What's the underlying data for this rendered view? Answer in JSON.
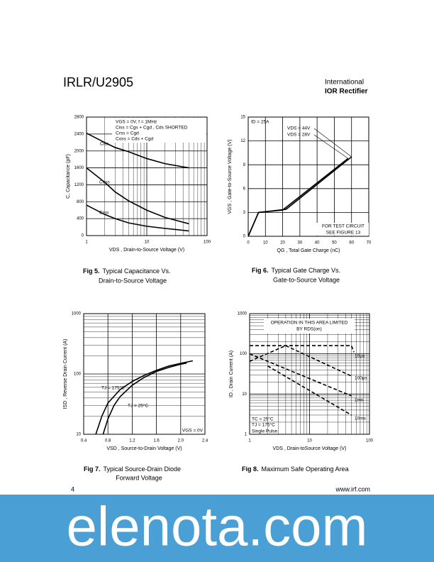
{
  "header": {
    "title": "IRLR/U2905",
    "logo_top": "International",
    "logo_bottom": "IOR Rectifier"
  },
  "chart_data": [
    {
      "type": "line",
      "xlabel": "VDS , Drain-to-Source Voltage (V)",
      "ylabel": "C, Capacitance (pF)",
      "xlog": true,
      "xlim": [
        1,
        100
      ],
      "xticks": [
        1,
        10,
        100
      ],
      "ylim": [
        0,
        2800
      ],
      "yticks": [
        0,
        400,
        800,
        1200,
        1600,
        2000,
        2400,
        2800
      ],
      "grid": true,
      "annotations": [
        "VGS = 0V,      f = 1MHz",
        "Ciss = Cgs + Cgd , Cds SHORTED",
        "Crss = Cgd",
        "Coss = Cds + Cgd"
      ],
      "series": [
        {
          "name": "Ciss",
          "color": "#000000",
          "x": [
            1,
            2,
            3,
            5,
            10,
            20,
            50
          ],
          "values": [
            2420,
            2200,
            2080,
            1980,
            1820,
            1700,
            1600
          ]
        },
        {
          "name": "Coss",
          "color": "#000000",
          "x": [
            1,
            2,
            3,
            5,
            10,
            20,
            50
          ],
          "values": [
            1600,
            1260,
            1030,
            820,
            600,
            430,
            280
          ]
        },
        {
          "name": "Crss",
          "color": "#000000",
          "x": [
            1,
            2,
            3,
            5,
            10,
            20,
            50
          ],
          "values": [
            720,
            500,
            400,
            300,
            220,
            170,
            110
          ]
        }
      ]
    },
    {
      "type": "line",
      "xlabel": "QG , Total Gate Charge (nC)",
      "ylabel": "VGS , Gate-to-Source Voltage (V)",
      "xlim": [
        0,
        70
      ],
      "xticks": [
        0,
        10,
        20,
        30,
        40,
        50,
        60,
        70
      ],
      "ylim": [
        0,
        15
      ],
      "yticks": [
        0,
        3,
        6,
        9,
        12,
        15
      ],
      "grid": true,
      "annotations": [
        "ID = 25A",
        "FOR TEST CIRCUIT",
        "SEE FIGURE 13"
      ],
      "series": [
        {
          "name": "VDS = 44V",
          "color": "#000000",
          "x": [
            0,
            6,
            22,
            60
          ],
          "values": [
            0,
            3,
            3.4,
            10
          ]
        },
        {
          "name": "VDS = 28V",
          "color": "#000000",
          "x": [
            0,
            6,
            20,
            58
          ],
          "values": [
            0,
            3,
            3.3,
            9.8
          ]
        }
      ]
    },
    {
      "type": "line",
      "xlabel": "VSD , Source-to-Drain Voltage (V)",
      "ylabel": "ISD , Reverse Drain Current (A)",
      "xlim": [
        0.4,
        2.4
      ],
      "xticks": [
        0.4,
        0.8,
        1.2,
        1.6,
        {
          "value": 2,
          "label": "2.0"
        },
        2.4
      ],
      "ylog": true,
      "ylim": [
        10,
        1000
      ],
      "yticks": [
        10,
        100,
        1000
      ],
      "grid": true,
      "annotations": [
        "VGS = 0V"
      ],
      "series": [
        {
          "name": "TJ = 175°C",
          "color": "#000000",
          "x": [
            0.6,
            0.7,
            0.8,
            1.0,
            1.2,
            1.4,
            1.6,
            1.8,
            2.0,
            2.2
          ],
          "values": [
            10,
            20,
            33,
            55,
            75,
            95,
            115,
            135,
            150,
            165
          ]
        },
        {
          "name": "TJ = 25°C",
          "color": "#000000",
          "x": [
            0.72,
            0.8,
            0.9,
            1.0,
            1.2,
            1.4,
            1.6,
            1.8,
            2.0,
            2.1
          ],
          "values": [
            10,
            18,
            30,
            42,
            65,
            88,
            110,
            128,
            145,
            152
          ]
        }
      ]
    },
    {
      "type": "line",
      "xlabel": "VDS , Drain-toSource Voltage (V)",
      "ylabel": "ID , Drain Current (A)",
      "xlog": true,
      "xlim": [
        1,
        100
      ],
      "xticks": [
        1,
        10,
        100
      ],
      "ylog": true,
      "ylim": [
        1,
        1000
      ],
      "yticks": [
        1,
        10,
        100,
        1000
      ],
      "grid": true,
      "dashed": true,
      "annotations": [
        "OPERATION IN THIS AREA LIMITED",
        "BY RDS(on)",
        "TC = 25°C",
        "TJ = 175°C",
        "Single Pulse"
      ],
      "series": [
        {
          "color": "#000000",
          "x": [
            1,
            4
          ],
          "values": [
            65,
            160
          ]
        },
        {
          "name": "10µs",
          "color": "#000000",
          "x": [
            1,
            50,
            55
          ],
          "values": [
            160,
            160,
            110
          ]
        },
        {
          "name": "100µs",
          "color": "#000000",
          "x": [
            4,
            50
          ],
          "values": [
            160,
            28
          ]
        },
        {
          "name": "1ms",
          "color": "#000000",
          "x": [
            1,
            50
          ],
          "values": [
            100,
            9
          ]
        },
        {
          "name": "10ms",
          "color": "#000000",
          "x": [
            2,
            50
          ],
          "values": [
            50,
            3
          ]
        }
      ]
    }
  ],
  "captions": [
    {
      "label": "Fig 5.",
      "lines": [
        "Typical Capacitance Vs.",
        "Drain-to-Source Voltage"
      ]
    },
    {
      "label": "Fig 6.",
      "lines": [
        "Typical Gate Charge Vs.",
        "Gate-to-Source Voltage"
      ]
    },
    {
      "label": "Fig 7.",
      "lines": [
        "Typical Source-Drain Diode",
        "Forward Voltage"
      ]
    },
    {
      "label": "Fig 8.",
      "lines": [
        "Maximum Safe Operating Area"
      ]
    }
  ],
  "footer": {
    "page": "4",
    "url": "www.irf.com"
  },
  "watermark": "elenota.com"
}
